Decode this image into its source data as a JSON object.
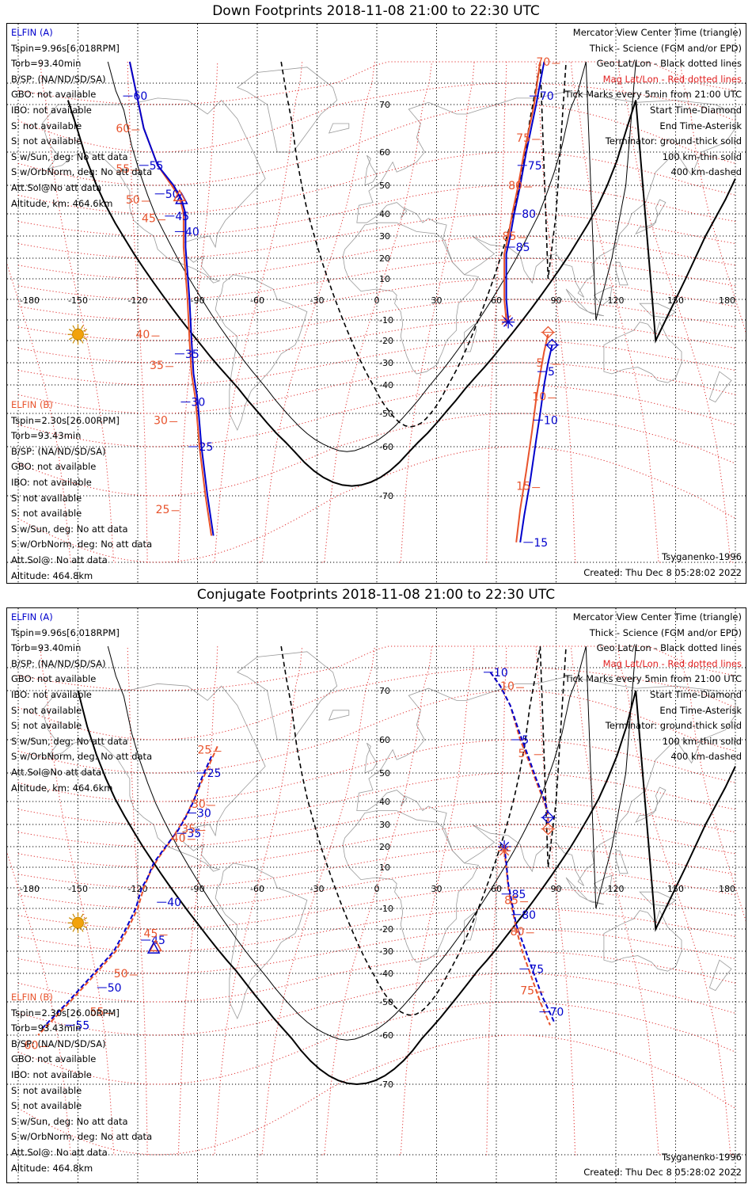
{
  "panels": [
    {
      "title": "Down Footprints 2018-11-08 21:00 to 22:30 UTC",
      "elfin_a": {
        "header": "ELFIN (A)",
        "lines": [
          "Tspin=9.96s[6.018RPM]",
          "Torb=93.40min",
          "B/SP: (NA/ND/SD/SA)",
          "GBO: not available",
          "IBO: not available",
          "S: not available",
          "S: not available",
          "S w/Sun, deg: No att data",
          "S w/OrbNorm, deg: No att data",
          "Att.Sol@No att data",
          "Altitude, km: 464.6km"
        ]
      },
      "elfin_b": {
        "header": "ELFIN (B)",
        "lines": [
          "Tspin=2.30s[26.00RPM]",
          "Torb=93.43min",
          "B/SP: (NA/ND/SD/SA)",
          "GBO: not available",
          "IBO: not available",
          "S: not available",
          "S: not available",
          "S w/Sun, deg: No att data",
          "S w/OrbNorm, deg: No att data",
          "Att.Sol@: No att data",
          "Altitude: 464.8km"
        ]
      },
      "legend": [
        "Mercator View Center Time (triangle)",
        "Thick - Science (FGM and/or EPD)",
        "Geo Lat/Lon - Black dotted lines",
        "Mag Lat/Lon - Red dotted lines",
        "Tick Marks every 5min from 21:00 UTC",
        "Start Time-Diamond",
        "End Time-Asterisk",
        "Terminator: ground-thick solid",
        "100 km-thin solid",
        "400 km-dashed"
      ],
      "model": "Tsyganenko-1996",
      "created": "Created: Thu Dec  8 05:28:02 2022",
      "track_a_blue_left": [
        [
          -124,
          84
        ],
        [
          -117,
          65
        ],
        [
          -110,
          56
        ],
        [
          -102,
          50
        ],
        [
          -98,
          45
        ],
        [
          -96,
          40
        ],
        [
          -96,
          25
        ],
        [
          -94,
          0
        ],
        [
          -93,
          -20
        ],
        [
          -92,
          -35
        ],
        [
          -90,
          -45
        ],
        [
          -88,
          -60
        ],
        [
          -85,
          -70
        ],
        [
          -82,
          -76
        ]
      ],
      "track_a_orange_left": [
        [
          -124,
          84
        ],
        [
          -117,
          65
        ],
        [
          -110,
          56
        ],
        [
          -103,
          50
        ],
        [
          -99,
          46
        ],
        [
          -97,
          40
        ],
        [
          -97,
          25
        ],
        [
          -95,
          0
        ],
        [
          -94,
          -20
        ],
        [
          -93,
          -35
        ],
        [
          -91,
          -45
        ],
        [
          -89,
          -60
        ],
        [
          -86,
          -70
        ],
        [
          -83,
          -76
        ]
      ],
      "track_right_orange": [
        [
          82,
          84
        ],
        [
          79,
          70
        ],
        [
          74,
          60
        ],
        [
          71,
          50
        ],
        [
          68,
          40
        ],
        [
          66,
          30
        ],
        [
          64,
          22
        ],
        [
          64,
          10
        ],
        [
          64,
          0
        ],
        [
          65,
          -10
        ]
      ],
      "track_right_blue": [
        [
          84,
          84
        ],
        [
          80,
          70
        ],
        [
          75,
          60
        ],
        [
          72,
          50
        ],
        [
          69,
          40
        ],
        [
          67,
          30
        ],
        [
          65,
          22
        ],
        [
          65,
          10
        ],
        [
          65,
          0
        ],
        [
          66,
          -10
        ]
      ],
      "track_lower_right_orange": [
        [
          86,
          -17
        ],
        [
          84,
          -25
        ],
        [
          82,
          -35
        ],
        [
          80,
          -45
        ],
        [
          78,
          -55
        ],
        [
          75,
          -65
        ],
        [
          72,
          -72
        ],
        [
          70,
          -77
        ]
      ],
      "track_lower_right_blue": [
        [
          88,
          -22
        ],
        [
          86,
          -30
        ],
        [
          84,
          -40
        ],
        [
          82,
          -50
        ],
        [
          80,
          -58
        ],
        [
          77,
          -67
        ],
        [
          74,
          -73
        ],
        [
          72,
          -77
        ]
      ],
      "tick_labels_blue": [
        [
          "60",
          -121,
          74
        ],
        [
          "55",
          -113,
          56
        ],
        [
          "50",
          -105,
          47
        ],
        [
          "45",
          -100,
          39
        ],
        [
          "40",
          -95,
          32
        ],
        [
          "35",
          -95,
          -26
        ],
        [
          "30",
          -92,
          -46
        ],
        [
          "25",
          -88,
          -60
        ],
        [
          "70",
          83,
          74
        ],
        [
          "75",
          77,
          56
        ],
        [
          "80",
          74,
          40
        ],
        [
          "85",
          71,
          25
        ],
        [
          "5",
          87,
          -34
        ],
        [
          "10",
          85,
          -52
        ],
        [
          "15",
          80,
          -77
        ]
      ],
      "tick_labels_orange": [
        [
          "60",
          -131,
          65
        ],
        [
          "55",
          -131,
          55
        ],
        [
          "50",
          -126,
          45
        ],
        [
          "45",
          -118,
          38
        ],
        [
          "40",
          -121,
          -17
        ],
        [
          "35",
          -114,
          -31
        ],
        [
          "30",
          -112,
          -52
        ],
        [
          "25",
          -111,
          -72
        ],
        [
          "70",
          80,
          84
        ],
        [
          "75",
          70,
          63
        ],
        [
          "80",
          66,
          50
        ],
        [
          "85",
          63,
          30
        ],
        [
          "5",
          80,
          -30
        ],
        [
          "10",
          78,
          -44
        ],
        [
          "15",
          70,
          -68
        ]
      ],
      "geo_lat_labels": [
        "70",
        "60",
        "50",
        "40",
        "30",
        "20",
        "10",
        "-10",
        "-20",
        "-30",
        "-40",
        "-50",
        "-60",
        "-70"
      ],
      "geo_lon_labels": [
        "-180",
        "-150",
        "-120",
        "-90",
        "-60",
        "-30",
        "0",
        "30",
        "60",
        "90",
        "120",
        "150",
        "180"
      ]
    },
    {
      "title": "Conjugate Footprints 2018-11-08 21:00 to 22:30 UTC",
      "elfin_a": {
        "header": "ELFIN (A)",
        "lines": [
          "Tspin=9.96s[6.018RPM]",
          "Torb=93.40min",
          "B/SP: (NA/ND/SD/SA)",
          "GBO: not available",
          "IBO: not available",
          "S: not available",
          "S: not available",
          "S w/Sun, deg: No att data",
          "S w/OrbNorm, deg: No att data",
          "Att.Sol@No att data",
          "Altitude, km: 464.6km"
        ]
      },
      "elfin_b": {
        "header": "ELFIN (B)",
        "lines": [
          "Tspin=2.30s[26.00RPM]",
          "Torb=93.43min",
          "B/SP: (NA/ND/SD/SA)",
          "GBO: not available",
          "IBO: not available",
          "S: not available",
          "S: not available",
          "S w/Sun, deg: No att data",
          "S w/OrbNorm, deg: No att data",
          "Att.Sol@: No att data",
          "Altitude: 464.8km"
        ]
      },
      "legend": [
        "Mercator View Center Time (triangle)",
        "Thick - Science (FGM and/or EPD)",
        "Geo Lat/Lon - Black dotted lines",
        "Mag Lat/Lon - Red dotted lines",
        "Tick Marks every 5min from 21:00 UTC",
        "Start Time-Diamond",
        "End Time-Asterisk",
        "Terminator: ground-thick solid",
        "100 km-thin solid",
        "400 km-dashed"
      ],
      "model": "Tsyganenko-1996",
      "created": "Created: Thu Dec  8 05:28:02 2022",
      "track_a_blue_left": [
        [
          -83,
          55
        ],
        [
          -88,
          48
        ],
        [
          -92,
          40
        ],
        [
          -96,
          33
        ],
        [
          -100,
          27
        ],
        [
          -106,
          20
        ],
        [
          -112,
          12
        ],
        [
          -115,
          5
        ],
        [
          -118,
          0
        ],
        [
          -121,
          -10
        ],
        [
          -126,
          -20
        ],
        [
          -132,
          -30
        ],
        [
          -142,
          -40
        ],
        [
          -155,
          -50
        ],
        [
          -168,
          -58
        ]
      ],
      "track_a_orange_left": [
        [
          -80,
          58
        ],
        [
          -86,
          50
        ],
        [
          -91,
          42
        ],
        [
          -95,
          35
        ],
        [
          -99,
          29
        ],
        [
          -104,
          22
        ],
        [
          -110,
          14
        ],
        [
          -114,
          7
        ],
        [
          -117,
          0
        ],
        [
          -120,
          -10
        ],
        [
          -125,
          -20
        ],
        [
          -131,
          -30
        ],
        [
          -141,
          -40
        ],
        [
          -154,
          -50
        ],
        [
          -170,
          -60
        ]
      ],
      "track_right_orange": [
        [
          57,
          78
        ],
        [
          62,
          72
        ],
        [
          67,
          67
        ],
        [
          72,
          60
        ],
        [
          76,
          54
        ],
        [
          80,
          47
        ],
        [
          84,
          40
        ],
        [
          86,
          34
        ],
        [
          86,
          30
        ]
      ],
      "track_right_blue": [
        [
          57,
          78
        ],
        [
          62,
          72
        ],
        [
          67,
          67
        ],
        [
          72,
          61
        ],
        [
          76,
          55
        ],
        [
          80,
          48
        ],
        [
          84,
          41
        ],
        [
          86,
          35
        ]
      ],
      "track_lower_right_orange": [
        [
          64,
          18
        ],
        [
          65,
          10
        ],
        [
          66,
          0
        ],
        [
          68,
          -10
        ],
        [
          70,
          -20
        ],
        [
          73,
          -30
        ],
        [
          77,
          -40
        ],
        [
          82,
          -50
        ],
        [
          87,
          -57
        ]
      ],
      "track_lower_right_blue": [
        [
          64,
          20
        ],
        [
          65,
          12
        ],
        [
          66,
          2
        ],
        [
          68,
          -8
        ],
        [
          70,
          -18
        ],
        [
          74,
          -28
        ],
        [
          78,
          -38
        ],
        [
          83,
          -48
        ],
        [
          89,
          -56
        ]
      ],
      "tick_labels_blue": [
        [
          "25",
          -84,
          50
        ],
        [
          "30",
          -89,
          35
        ],
        [
          "35",
          -94,
          26
        ],
        [
          "40",
          -104,
          -7
        ],
        [
          "45",
          -112,
          -25
        ],
        [
          "50",
          -134,
          -45
        ],
        [
          "55",
          -150,
          -57
        ],
        [
          "10",
          60,
          78
        ],
        [
          "5",
          74,
          60
        ],
        [
          "85",
          69,
          -3
        ],
        [
          "80",
          74,
          -13
        ],
        [
          "75",
          78,
          -38
        ],
        [
          "70",
          88,
          -53
        ]
      ],
      "tick_labels_orange": [
        [
          "25",
          -90,
          57
        ],
        [
          "30",
          -93,
          39
        ],
        [
          "35",
          -98,
          28
        ],
        [
          "40",
          -103,
          24
        ],
        [
          "45",
          -117,
          -22
        ],
        [
          "50",
          -132,
          -40
        ],
        [
          "55",
          -144,
          -53
        ],
        [
          "60",
          -177,
          -62
        ],
        [
          "10",
          62,
          72
        ],
        [
          "5",
          71,
          56
        ],
        [
          "85",
          64,
          -6
        ],
        [
          "80",
          67,
          -21
        ],
        [
          "75",
          72,
          -46
        ]
      ],
      "geo_lat_labels": [
        "70",
        "60",
        "50",
        "40",
        "30",
        "20",
        "10",
        "-10",
        "-20",
        "-30",
        "-40",
        "-50",
        "-60",
        "-70"
      ],
      "geo_lon_labels": [
        "-180",
        "-150",
        "-120",
        "-90",
        "-60",
        "-30",
        "0",
        "30",
        "60",
        "90",
        "120",
        "150",
        "180"
      ]
    }
  ]
}
